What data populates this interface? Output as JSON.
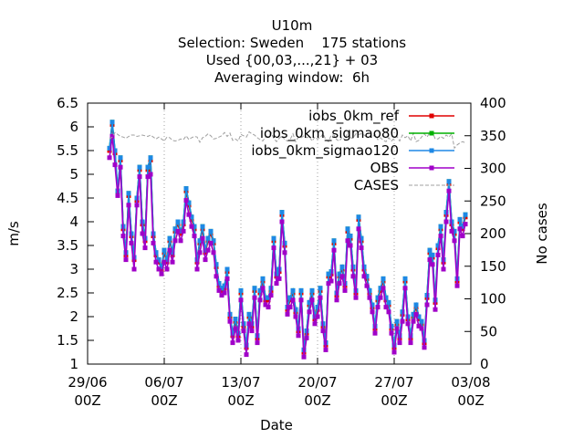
{
  "chart_data": {
    "type": "line",
    "title_lines": [
      "U10m",
      "Selection: Sweden    175 stations",
      "Used {00,03,...,21} + 03",
      "Averaging window:  6h"
    ],
    "xlabel": "Date",
    "ylabel": "m/s",
    "y2label": "No cases",
    "xlim": [
      "2019-06-29 00:00",
      "2019-08-03 00:00"
    ],
    "ylim": [
      1,
      6.5
    ],
    "y2lim": [
      0,
      400
    ],
    "x_ticks": [
      {
        "date": "29/06",
        "hour": "00Z"
      },
      {
        "date": "06/07",
        "hour": "00Z"
      },
      {
        "date": "13/07",
        "hour": "00Z"
      },
      {
        "date": "20/07",
        "hour": "00Z"
      },
      {
        "date": "27/07",
        "hour": "00Z"
      },
      {
        "date": "03/08",
        "hour": "00Z"
      }
    ],
    "y_ticks": [
      "1",
      "1.5",
      "2",
      "2.5",
      "3",
      "3.5",
      "4",
      "4.5",
      "5",
      "5.5",
      "6",
      "6.5"
    ],
    "y2_ticks": [
      "0",
      "50",
      "100",
      "150",
      "200",
      "250",
      "300",
      "350",
      "400"
    ],
    "grid": true,
    "legend_position": "top-right",
    "x_step_hours": 6,
    "x_start": "2019-07-01 00:00",
    "series": [
      {
        "name": "iobs_0km_ref",
        "color": "#e00000",
        "axis": "left",
        "values": [
          5.5,
          6.05,
          5.45,
          4.6,
          5.3,
          3.85,
          3.3,
          4.55,
          3.7,
          3.2,
          4.45,
          5.1,
          3.95,
          3.6,
          5.1,
          5.3,
          3.7,
          3.3,
          3.15,
          3.0,
          3.35,
          3.15,
          3.6,
          3.3,
          3.8,
          3.95,
          3.75,
          3.95,
          4.65,
          4.35,
          4.05,
          3.85,
          3.15,
          3.55,
          3.85,
          3.35,
          3.6,
          3.75,
          3.55,
          3.05,
          2.65,
          2.55,
          2.6,
          2.95,
          2.0,
          1.6,
          1.9,
          1.6,
          2.5,
          1.8,
          1.35,
          2.0,
          1.8,
          2.55,
          1.55,
          2.5,
          2.75,
          2.35,
          2.35,
          2.55,
          3.6,
          2.85,
          2.95,
          4.15,
          3.5,
          2.15,
          2.35,
          2.5,
          2.1,
          1.7,
          2.5,
          1.25,
          1.65,
          2.25,
          2.5,
          1.95,
          2.15,
          2.55,
          1.8,
          1.4,
          2.85,
          2.9,
          3.55,
          2.45,
          2.85,
          3.0,
          2.65,
          3.8,
          3.65,
          3.0,
          2.5,
          4.05,
          3.6,
          3.0,
          2.8,
          2.5,
          2.2,
          1.75,
          2.35,
          2.55,
          2.75,
          2.35,
          2.25,
          1.75,
          1.35,
          1.85,
          1.55,
          2.05,
          2.75,
          1.95,
          1.55,
          2.0,
          2.2,
          1.95,
          1.85,
          1.45,
          2.4,
          3.35,
          3.25,
          2.3,
          3.45,
          3.85,
          3.15,
          4.15,
          4.8,
          3.95,
          3.75,
          2.75,
          4.0,
          3.85,
          4.1
        ]
      },
      {
        "name": "iobs_0km_sigmao80",
        "color": "#00b000",
        "axis": "left",
        "values": [
          5.55,
          6.1,
          5.5,
          4.65,
          5.35,
          3.9,
          3.35,
          4.6,
          3.75,
          3.25,
          4.5,
          5.15,
          4.0,
          3.65,
          5.15,
          5.35,
          3.75,
          3.35,
          3.2,
          3.05,
          3.4,
          3.2,
          3.65,
          3.35,
          3.85,
          4.0,
          3.8,
          4.0,
          4.7,
          4.4,
          4.1,
          3.9,
          3.2,
          3.6,
          3.9,
          3.4,
          3.65,
          3.8,
          3.6,
          3.1,
          2.7,
          2.6,
          2.65,
          3.0,
          2.05,
          1.65,
          1.95,
          1.65,
          2.55,
          1.85,
          1.4,
          2.05,
          1.85,
          2.6,
          1.6,
          2.55,
          2.8,
          2.4,
          2.4,
          2.6,
          3.65,
          2.9,
          3.0,
          4.2,
          3.55,
          2.2,
          2.4,
          2.55,
          2.15,
          1.75,
          2.55,
          1.3,
          1.7,
          2.3,
          2.55,
          2.0,
          2.2,
          2.6,
          1.85,
          1.45,
          2.9,
          2.95,
          3.6,
          2.5,
          2.9,
          3.05,
          2.7,
          3.85,
          3.7,
          3.05,
          2.55,
          4.1,
          3.65,
          3.05,
          2.85,
          2.55,
          2.25,
          1.8,
          2.4,
          2.6,
          2.8,
          2.4,
          2.3,
          1.8,
          1.4,
          1.9,
          1.6,
          2.1,
          2.8,
          2.0,
          1.6,
          2.05,
          2.25,
          2.0,
          1.9,
          1.5,
          2.45,
          3.4,
          3.3,
          2.35,
          3.5,
          3.9,
          3.2,
          4.2,
          4.85,
          4.0,
          3.8,
          2.8,
          4.05,
          3.9,
          4.15
        ]
      },
      {
        "name": "iobs_0km_sigmao120",
        "color": "#1e88e5",
        "axis": "left",
        "values": [
          5.55,
          6.1,
          5.5,
          4.65,
          5.35,
          3.9,
          3.35,
          4.6,
          3.75,
          3.25,
          4.5,
          5.15,
          4.0,
          3.65,
          5.15,
          5.35,
          3.75,
          3.35,
          3.2,
          3.05,
          3.4,
          3.2,
          3.65,
          3.35,
          3.85,
          4.0,
          3.8,
          4.0,
          4.7,
          4.4,
          4.1,
          3.9,
          3.2,
          3.6,
          3.9,
          3.4,
          3.65,
          3.8,
          3.6,
          3.1,
          2.7,
          2.6,
          2.65,
          3.0,
          2.05,
          1.65,
          1.95,
          1.65,
          2.55,
          1.85,
          1.4,
          2.05,
          1.85,
          2.6,
          1.6,
          2.55,
          2.8,
          2.4,
          2.4,
          2.6,
          3.65,
          2.9,
          3.0,
          4.2,
          3.55,
          2.2,
          2.4,
          2.55,
          2.15,
          1.75,
          2.55,
          1.3,
          1.7,
          2.3,
          2.55,
          2.0,
          2.2,
          2.6,
          1.85,
          1.45,
          2.9,
          2.95,
          3.6,
          2.5,
          2.9,
          3.05,
          2.7,
          3.85,
          3.7,
          3.05,
          2.55,
          4.1,
          3.65,
          3.05,
          2.85,
          2.55,
          2.25,
          1.8,
          2.4,
          2.6,
          2.8,
          2.4,
          2.3,
          1.8,
          1.4,
          1.9,
          1.6,
          2.1,
          2.8,
          2.0,
          1.6,
          2.05,
          2.25,
          2.0,
          1.9,
          1.5,
          2.45,
          3.4,
          3.3,
          2.35,
          3.5,
          3.9,
          3.2,
          4.2,
          4.85,
          4.0,
          3.8,
          2.8,
          4.05,
          3.9,
          4.15
        ]
      },
      {
        "name": "OBS",
        "color": "#a000c8",
        "axis": "left",
        "values": [
          5.35,
          5.8,
          5.2,
          4.55,
          5.15,
          3.7,
          3.2,
          4.35,
          3.55,
          3.0,
          4.35,
          4.95,
          3.75,
          3.45,
          4.95,
          5.0,
          3.55,
          3.15,
          3.0,
          2.9,
          3.15,
          3.0,
          3.4,
          3.15,
          3.6,
          3.8,
          3.6,
          3.8,
          4.45,
          4.15,
          3.9,
          3.7,
          3.0,
          3.35,
          3.65,
          3.2,
          3.4,
          3.55,
          3.35,
          2.85,
          2.55,
          2.45,
          2.5,
          2.8,
          1.9,
          1.45,
          1.75,
          1.5,
          2.35,
          1.7,
          1.2,
          1.85,
          1.7,
          2.4,
          1.45,
          2.35,
          2.6,
          2.25,
          2.2,
          2.45,
          3.45,
          2.7,
          2.8,
          4.0,
          3.35,
          2.05,
          2.2,
          2.35,
          2.0,
          1.6,
          2.35,
          1.15,
          1.55,
          2.1,
          2.35,
          1.85,
          2.0,
          2.4,
          1.7,
          1.3,
          2.7,
          2.75,
          3.4,
          2.35,
          2.7,
          2.85,
          2.55,
          3.6,
          3.5,
          2.85,
          2.4,
          3.85,
          3.45,
          2.85,
          2.65,
          2.4,
          2.1,
          1.65,
          2.2,
          2.4,
          2.6,
          2.2,
          2.1,
          1.65,
          1.25,
          1.75,
          1.45,
          1.9,
          2.6,
          1.85,
          1.45,
          1.9,
          2.05,
          1.8,
          1.75,
          1.35,
          2.25,
          3.2,
          3.1,
          2.15,
          3.3,
          3.7,
          3.0,
          4.0,
          4.65,
          3.8,
          3.6,
          2.65,
          3.85,
          3.7,
          3.95
        ]
      },
      {
        "name": "CASES",
        "color": "#a0a0a0",
        "axis": "right",
        "values": [
          345,
          348,
          355,
          352,
          349,
          348,
          346,
          349,
          351,
          351,
          349,
          350,
          351,
          350,
          349,
          351,
          348,
          345,
          348,
          345,
          342,
          348,
          347,
          343,
          342,
          343,
          345,
          344,
          350,
          344,
          347,
          349,
          348,
          340,
          347,
          349,
          353,
          350,
          345,
          346,
          348,
          350,
          355,
          349,
          354,
          343,
          345,
          342,
          352,
          350,
          348,
          356,
          353,
          351,
          347,
          344,
          342,
          348,
          349,
          355,
          346,
          341,
          346,
          350,
          344,
          342,
          344,
          353,
          341,
          348,
          347,
          350,
          347,
          349,
          342,
          348,
          345,
          347,
          353,
          344,
          341,
          351,
          351,
          344,
          342,
          348,
          343,
          355,
          347,
          346,
          353,
          352,
          353,
          351,
          348,
          348,
          348,
          352,
          344,
          347,
          343,
          341,
          347,
          342,
          346,
          349,
          342,
          351,
          347,
          350,
          342,
          354,
          341,
          343,
          348,
          353,
          348,
          355,
          355,
          345,
          345,
          349,
          346,
          351,
          348,
          353,
          331,
          336,
          339,
          341,
          339
        ]
      }
    ]
  }
}
